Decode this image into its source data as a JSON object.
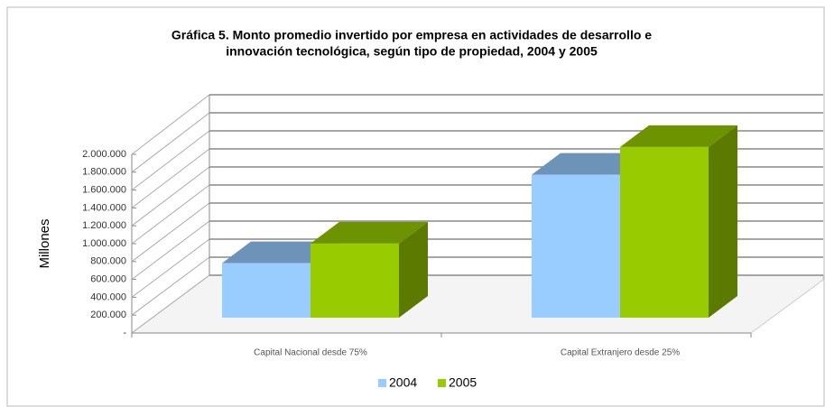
{
  "chart_data": {
    "type": "bar3d",
    "title": [
      "Gráfica 5. Monto promedio invertido por empresa en actividades de desarrollo e",
      "innovación tecnológica, según tipo de propiedad, 2004 y 2005"
    ],
    "ylabel": "Millones",
    "categories": [
      "Capital Nacional desde 75%",
      "Capital Extranjero desde 25%"
    ],
    "series": [
      {
        "name": "2004",
        "color": "#99ccff",
        "values": [
          610000,
          1600000
        ]
      },
      {
        "name": "2005",
        "color": "#99cc00",
        "values": [
          830000,
          1910000
        ]
      }
    ],
    "ylim": [
      0,
      2000000
    ],
    "yticks": [
      {
        "value": 0,
        "label": "-"
      },
      {
        "value": 200000,
        "label": "200.000"
      },
      {
        "value": 400000,
        "label": "400.000"
      },
      {
        "value": 600000,
        "label": "600.000"
      },
      {
        "value": 800000,
        "label": "800.000"
      },
      {
        "value": 1000000,
        "label": "1.000.000"
      },
      {
        "value": 1200000,
        "label": "1.200.000"
      },
      {
        "value": 1400000,
        "label": "1.400.000"
      },
      {
        "value": 1600000,
        "label": "1.600.000"
      },
      {
        "value": 1800000,
        "label": "1.800.000"
      },
      {
        "value": 2000000,
        "label": "2.000.000"
      }
    ],
    "grid": true,
    "legend": "bottom"
  }
}
